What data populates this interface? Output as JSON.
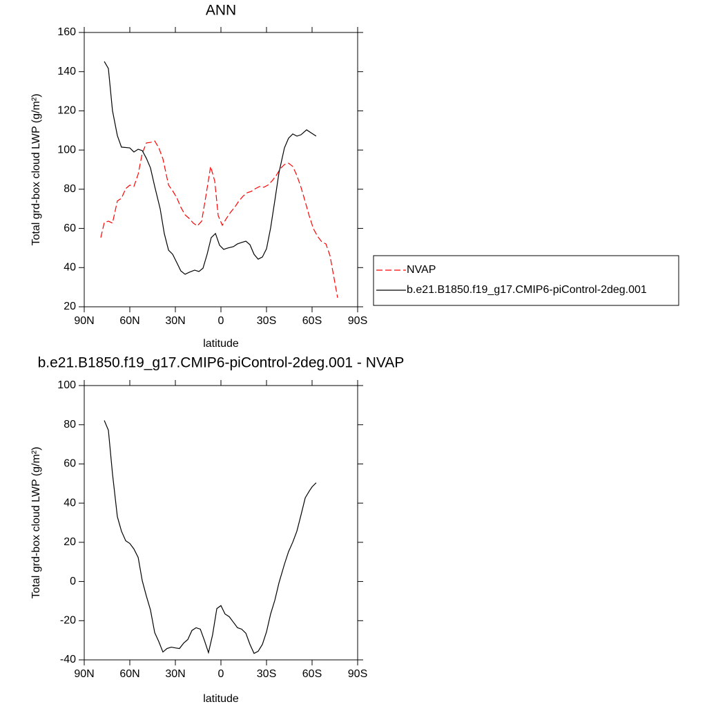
{
  "chart_data": [
    {
      "type": "line",
      "title": "ANN",
      "xlabel": "latitude",
      "ylabel": "Total grd-box cloud LWP (g/m²)",
      "xlim": [
        90,
        -90
      ],
      "xticks": [
        {
          "value": 90,
          "label": "90N"
        },
        {
          "value": 60,
          "label": "60N"
        },
        {
          "value": 30,
          "label": "30N"
        },
        0,
        {
          "value": -30,
          "label": "30S"
        },
        {
          "value": -60,
          "label": "60S"
        },
        {
          "value": -90,
          "label": "90S"
        }
      ],
      "ylim": [
        20,
        160
      ],
      "yticks": [
        20,
        40,
        60,
        80,
        100,
        120,
        140,
        160
      ],
      "legend": "right",
      "series": [
        {
          "name": "NVAP",
          "color": "#ff0000",
          "linestyle": "dashed",
          "x": [
            79.1,
            76.8,
            74.1,
            71.4,
            68.2,
            65.5,
            62.7,
            60,
            57.3,
            54.5,
            51.8,
            49.1,
            46.4,
            43.6,
            40.9,
            38.2,
            34.5,
            31.8,
            29.1,
            26.4,
            23.6,
            20.9,
            18.2,
            15.5,
            12.7,
            10,
            6.8,
            4.1,
            1.8,
            -0.9,
            -3.6,
            -6.4,
            -9.1,
            -11.8,
            -14.5,
            -17.3,
            -20,
            -22.7,
            -25.5,
            -28.2,
            -30.9,
            -33.6,
            -36.4,
            -39.1,
            -41.8,
            -44.5,
            -47.3,
            -50,
            -52.7,
            -55.5,
            -58.2,
            -60.9,
            -63.6,
            -66.4,
            -69.1,
            -71.8,
            -74.5,
            -76.8
          ],
          "values": [
            55.3,
            63,
            63.7,
            62.7,
            74,
            75.4,
            80.3,
            82.1,
            81.4,
            87.7,
            98.3,
            103.6,
            103.9,
            104.6,
            101.1,
            95.5,
            82.1,
            79.2,
            75.7,
            70.8,
            66.9,
            65.1,
            62.7,
            61.3,
            63.7,
            76.1,
            91.6,
            84.2,
            66.5,
            61.6,
            65.1,
            68.3,
            70.8,
            74,
            76.4,
            78.2,
            78.9,
            80.3,
            81.4,
            81,
            82.1,
            84.2,
            87,
            90.5,
            92.6,
            93.3,
            91.6,
            87,
            81,
            73.6,
            66.2,
            59.8,
            56,
            53.1,
            52.1,
            46.1,
            34.5,
            24.6
          ]
        },
        {
          "name": "b.e21.B1850.f19_g17.CMIP6-piControl-2deg.001",
          "color": "#000000",
          "linestyle": "solid",
          "x": [
            76.8,
            74.1,
            71.4,
            68.2,
            65.5,
            60,
            57.3,
            54.5,
            51.8,
            49.1,
            46.4,
            43.6,
            40,
            37.3,
            34.5,
            31.8,
            29.1,
            26.4,
            23.6,
            20.9,
            17.3,
            14.5,
            11.8,
            9.1,
            6.4,
            3.6,
            0.9,
            -1.8,
            -4.5,
            -8.2,
            -10.9,
            -13.6,
            -16.4,
            -19.1,
            -21.8,
            -24.5,
            -27.3,
            -30,
            -32.7,
            -35.5,
            -38.2,
            -41.8,
            -44.5,
            -47.3,
            -50,
            -52.7,
            -56.4,
            -59.1,
            -62.7
          ],
          "values": [
            145.2,
            141.6,
            120.1,
            107.4,
            101.5,
            101.1,
            99,
            100.4,
            99.7,
            95.8,
            90.9,
            81.4,
            70,
            57.4,
            48.9,
            46.8,
            42.6,
            38.3,
            36.6,
            37.6,
            38.7,
            38,
            39.7,
            46.8,
            55.3,
            57.4,
            51.4,
            49.3,
            50,
            50.7,
            52.1,
            52.8,
            53.5,
            51.7,
            46.8,
            44.3,
            45.4,
            49.6,
            60.2,
            74.3,
            88.4,
            101.1,
            106,
            108.2,
            107.1,
            107.8,
            110.3,
            108.9,
            107.1
          ]
        }
      ]
    },
    {
      "type": "line",
      "title": "b.e21.B1850.f19_g17.CMIP6-piControl-2deg.001 - NVAP",
      "xlabel": "latitude",
      "ylabel": "Total grd-box cloud LWP (g/m²)",
      "xlim": [
        90,
        -90
      ],
      "xticks": [
        {
          "value": 90,
          "label": "90N"
        },
        {
          "value": 60,
          "label": "60N"
        },
        {
          "value": 30,
          "label": "30N"
        },
        0,
        {
          "value": -30,
          "label": "30S"
        },
        {
          "value": -60,
          "label": "60S"
        },
        {
          "value": -90,
          "label": "90S"
        }
      ],
      "ylim": [
        -40,
        100
      ],
      "yticks": [
        -40,
        -20,
        0,
        20,
        40,
        60,
        80,
        100
      ],
      "series": [
        {
          "color": "#000000",
          "linestyle": "solid",
          "x": [
            76.8,
            74.1,
            71.4,
            68.2,
            65.5,
            62.7,
            60,
            57.3,
            54.5,
            51.8,
            49.1,
            46.4,
            43.6,
            40.9,
            38.2,
            35.5,
            32.7,
            30,
            27.3,
            24.5,
            21.8,
            19.1,
            16.4,
            13.6,
            10.9,
            8.2,
            5.5,
            2.7,
            0,
            -2.7,
            -5.5,
            -8.2,
            -10.9,
            -13.6,
            -16.4,
            -19.1,
            -21.8,
            -24.5,
            -27.3,
            -30,
            -32.7,
            -35.5,
            -38.2,
            -41.8,
            -44.5,
            -47.3,
            -50,
            -52.7,
            -55.5,
            -58.2,
            -60,
            -62.7
          ],
          "values": [
            82.2,
            77.2,
            55,
            33.1,
            25.7,
            20.8,
            19.4,
            16.6,
            12.3,
            0.4,
            -7.4,
            -14.5,
            -26.1,
            -30.7,
            -36,
            -34.2,
            -33.5,
            -33.9,
            -34.2,
            -31.4,
            -29.6,
            -25,
            -23.6,
            -24.3,
            -30,
            -36.3,
            -27.2,
            -13.8,
            -12.3,
            -16.6,
            -18,
            -20.8,
            -23.6,
            -24.3,
            -26.4,
            -32.1,
            -36.7,
            -35.6,
            -32.1,
            -25.7,
            -16.6,
            -9.5,
            -0.7,
            8.8,
            15.2,
            20.1,
            25.7,
            33.9,
            42.7,
            46.2,
            48.3,
            50.4
          ]
        }
      ]
    }
  ]
}
